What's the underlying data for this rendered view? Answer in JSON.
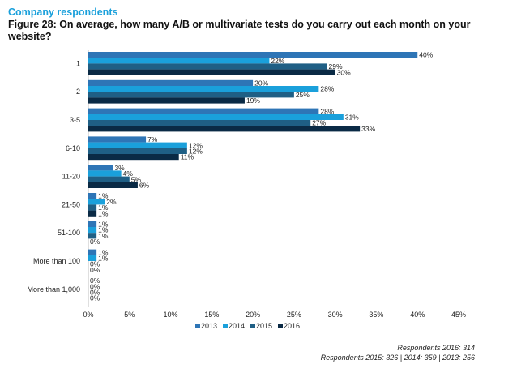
{
  "header": {
    "subtitle": "Company respondents",
    "title": "Figure 28: On average, how many A/B or multivariate tests do you carry out each month on your website?"
  },
  "colors": {
    "2013": "#2e75b6",
    "2014": "#1aa0db",
    "2015": "#1f5f85",
    "2016": "#0a2a45"
  },
  "chart_data": {
    "type": "bar",
    "orientation": "horizontal",
    "categories": [
      "1",
      "2",
      "3-5",
      "6-10",
      "11-20",
      "21-50",
      "51-100",
      "More than 100",
      "More than 1,000"
    ],
    "series": [
      {
        "name": "2013",
        "values": [
          40,
          20,
          28,
          7,
          3,
          1,
          1,
          1,
          0
        ],
        "labels": [
          "40%",
          "20%",
          "28%",
          "7%",
          "3%",
          "1%",
          "1%",
          "1%",
          "0%"
        ]
      },
      {
        "name": "2014",
        "values": [
          22,
          28,
          31,
          12,
          4,
          2,
          1,
          1,
          0
        ],
        "labels": [
          "22%",
          "28%",
          "31%",
          "12%",
          "4%",
          "2%",
          "1%",
          "1%",
          "0%"
        ]
      },
      {
        "name": "2015",
        "values": [
          29,
          25,
          27,
          12,
          5,
          1,
          1,
          0,
          0
        ],
        "labels": [
          "29%",
          "25%",
          "27%",
          "12%",
          "5%",
          "1%",
          "1%",
          "0%",
          "0%"
        ]
      },
      {
        "name": "2016",
        "values": [
          30,
          19,
          33,
          11,
          6,
          1,
          0,
          0,
          0
        ],
        "labels": [
          "30%",
          "19%",
          "33%",
          "11%",
          "6%",
          "1%",
          "0%",
          "0%",
          "0%"
        ]
      }
    ],
    "xlim": [
      0,
      45
    ],
    "xticks": [
      "0%",
      "5%",
      "10%",
      "15%",
      "20%",
      "25%",
      "30%",
      "35%",
      "40%",
      "45%"
    ],
    "legend_position": "bottom"
  },
  "notes": {
    "line1": "Respondents 2016: 314",
    "line2": "Respondents 2015: 326 | 2014: 359 | 2013: 256"
  }
}
